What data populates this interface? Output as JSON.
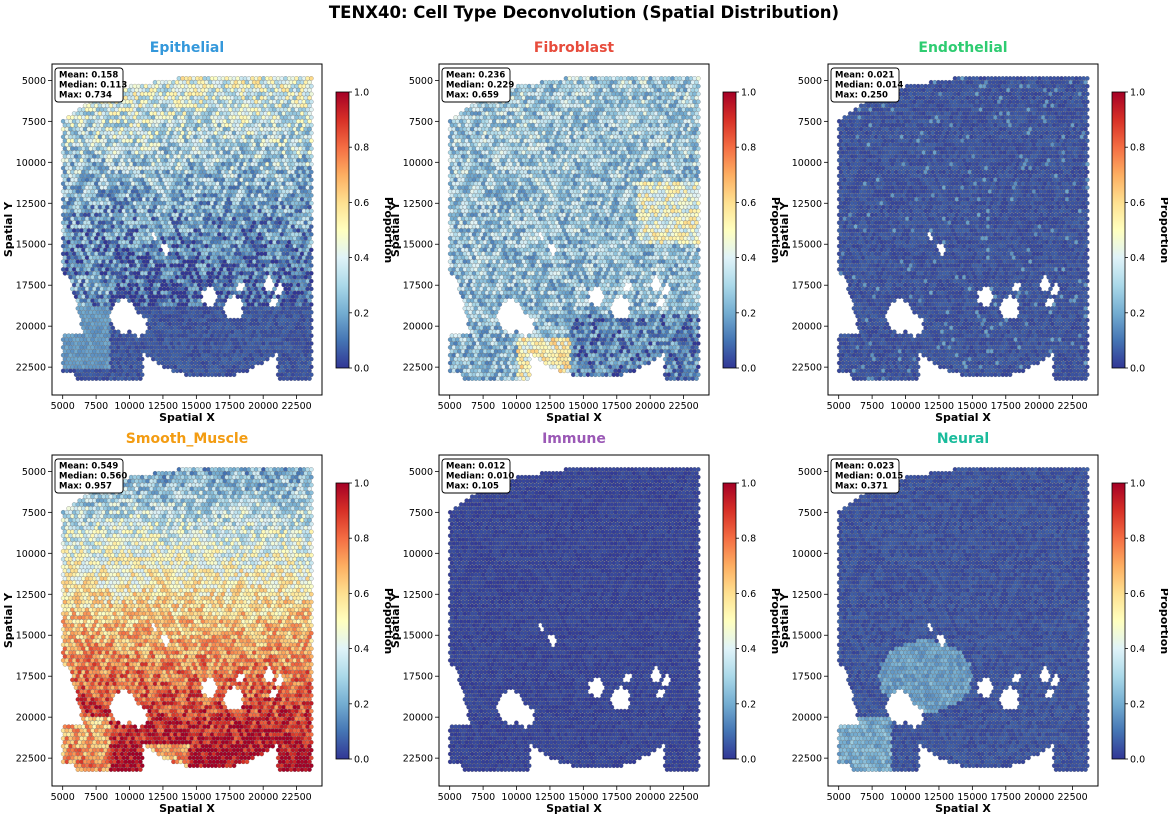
{
  "figure_title": "TENX40: Cell Type Deconvolution (Spatial Distribution)",
  "colors": {
    "spot_edge": "#555555",
    "hole": "#ffffff",
    "colormap": [
      "#313695",
      "#4575b4",
      "#74add1",
      "#abd9e9",
      "#e0f3f8",
      "#ffffbf",
      "#fee090",
      "#fdae61",
      "#f46d43",
      "#d73027",
      "#a50026"
    ]
  },
  "chart_data": [
    {
      "type": "heatmap",
      "name": "Epithelial",
      "title_color": "#3498db",
      "xlabel": "Spatial X",
      "ylabel": "Spatial Y",
      "xlim": [
        4200,
        24400
      ],
      "ylim": [
        24200,
        4000
      ],
      "xticks": [
        5000,
        7500,
        10000,
        12500,
        15000,
        17500,
        20000,
        22500
      ],
      "yticks": [
        5000,
        7500,
        10000,
        12500,
        15000,
        17500,
        20000,
        22500
      ],
      "colorbar": {
        "label": "Proportion",
        "ticks": [
          "0.0",
          "0.2",
          "0.4",
          "0.6",
          "0.8",
          "1.0"
        ],
        "range": [
          0,
          1
        ]
      },
      "stats": {
        "mean": "Mean: 0.158",
        "median": "Median: 0.113",
        "max": "Max: 0.734"
      },
      "pattern": "epithelial"
    },
    {
      "type": "heatmap",
      "name": "Fibroblast",
      "title_color": "#e74c3c",
      "xlabel": "Spatial X",
      "ylabel": "Spatial Y",
      "xlim": [
        4200,
        24400
      ],
      "ylim": [
        24200,
        4000
      ],
      "xticks": [
        5000,
        7500,
        10000,
        12500,
        15000,
        17500,
        20000,
        22500
      ],
      "yticks": [
        5000,
        7500,
        10000,
        12500,
        15000,
        17500,
        20000,
        22500
      ],
      "colorbar": {
        "label": "Proportion",
        "ticks": [
          "0.0",
          "0.2",
          "0.4",
          "0.6",
          "0.8",
          "1.0"
        ],
        "range": [
          0,
          1
        ]
      },
      "stats": {
        "mean": "Mean: 0.236",
        "median": "Median: 0.229",
        "max": "Max: 0.659"
      },
      "pattern": "fibroblast"
    },
    {
      "type": "heatmap",
      "name": "Endothelial",
      "title_color": "#2ecc71",
      "xlabel": "Spatial X",
      "ylabel": "Spatial Y",
      "xlim": [
        4200,
        24400
      ],
      "ylim": [
        24200,
        4000
      ],
      "xticks": [
        5000,
        7500,
        10000,
        12500,
        15000,
        17500,
        20000,
        22500
      ],
      "yticks": [
        5000,
        7500,
        10000,
        12500,
        15000,
        17500,
        20000,
        22500
      ],
      "colorbar": {
        "label": "Proportion",
        "ticks": [
          "0.0",
          "0.2",
          "0.4",
          "0.6",
          "0.8",
          "1.0"
        ],
        "range": [
          0,
          1
        ]
      },
      "stats": {
        "mean": "Mean: 0.021",
        "median": "Median: 0.014",
        "max": "Max: 0.250"
      },
      "pattern": "endothelial"
    },
    {
      "type": "heatmap",
      "name": "Smooth_Muscle",
      "title_color": "#f39c12",
      "xlabel": "Spatial X",
      "ylabel": "Spatial Y",
      "xlim": [
        4200,
        24400
      ],
      "ylim": [
        24200,
        4000
      ],
      "xticks": [
        5000,
        7500,
        10000,
        12500,
        15000,
        17500,
        20000,
        22500
      ],
      "yticks": [
        5000,
        7500,
        10000,
        12500,
        15000,
        17500,
        20000,
        22500
      ],
      "colorbar": {
        "label": "Proportion",
        "ticks": [
          "0.0",
          "0.2",
          "0.4",
          "0.6",
          "0.8",
          "1.0"
        ],
        "range": [
          0,
          1
        ]
      },
      "stats": {
        "mean": "Mean: 0.549",
        "median": "Median: 0.560",
        "max": "Max: 0.957"
      },
      "pattern": "smooth_muscle"
    },
    {
      "type": "heatmap",
      "name": "Immune",
      "title_color": "#9b59b6",
      "xlabel": "Spatial X",
      "ylabel": "Spatial Y",
      "xlim": [
        4200,
        24400
      ],
      "ylim": [
        24200,
        4000
      ],
      "xticks": [
        5000,
        7500,
        10000,
        12500,
        15000,
        17500,
        20000,
        22500
      ],
      "yticks": [
        5000,
        7500,
        10000,
        12500,
        15000,
        17500,
        20000,
        22500
      ],
      "colorbar": {
        "label": "Proportion",
        "ticks": [
          "0.0",
          "0.2",
          "0.4",
          "0.6",
          "0.8",
          "1.0"
        ],
        "range": [
          0,
          1
        ]
      },
      "stats": {
        "mean": "Mean: 0.012",
        "median": "Median: 0.010",
        "max": "Max: 0.105"
      },
      "pattern": "immune"
    },
    {
      "type": "heatmap",
      "name": "Neural",
      "title_color": "#1abc9c",
      "xlabel": "Spatial X",
      "ylabel": "Spatial Y",
      "xlim": [
        4200,
        24400
      ],
      "ylim": [
        24200,
        4000
      ],
      "xticks": [
        5000,
        7500,
        10000,
        12500,
        15000,
        17500,
        20000,
        22500
      ],
      "yticks": [
        5000,
        7500,
        10000,
        12500,
        15000,
        17500,
        20000,
        22500
      ],
      "colorbar": {
        "label": "Proportion",
        "ticks": [
          "0.0",
          "0.2",
          "0.4",
          "0.6",
          "0.8",
          "1.0"
        ],
        "range": [
          0,
          1
        ]
      },
      "stats": {
        "mean": "Mean: 0.023",
        "median": "Median: 0.015",
        "max": "Max: 0.371"
      },
      "pattern": "neural"
    }
  ]
}
